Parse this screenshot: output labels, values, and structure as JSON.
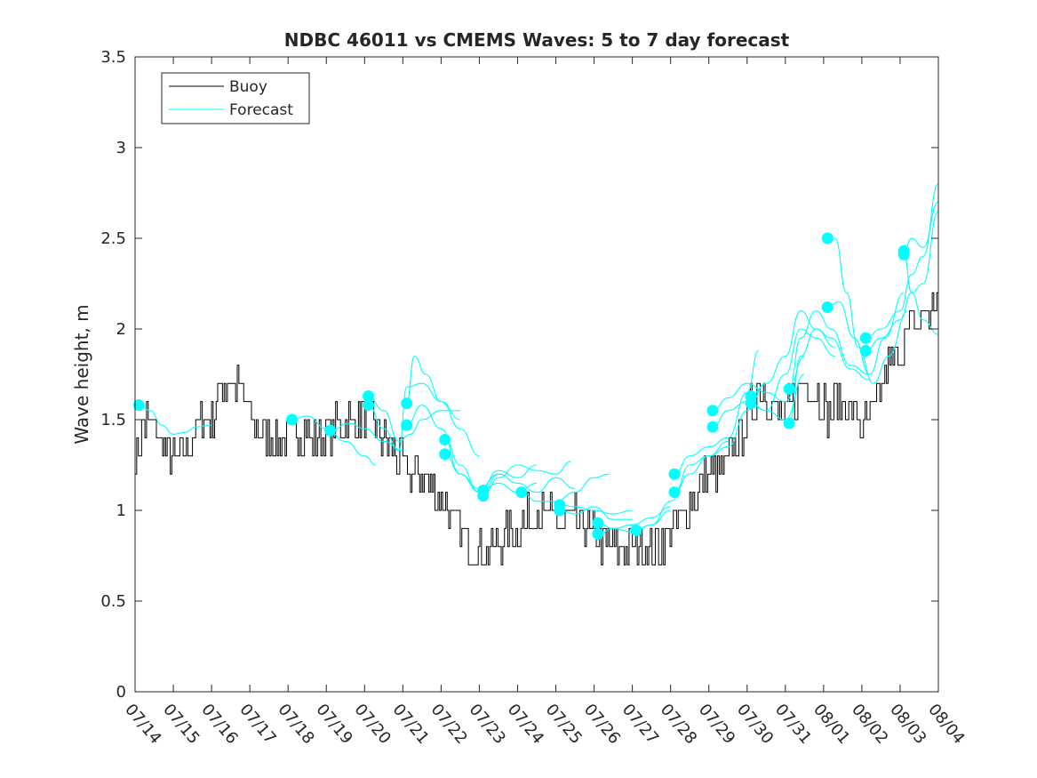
{
  "chart_data": {
    "type": "line",
    "title": "NDBC 46011 vs CMEMS Waves: 5 to 7 day forecast",
    "xlabel": "",
    "ylabel": "Wave height, m",
    "x_ticks": [
      "07/14",
      "07/15",
      "07/16",
      "07/17",
      "07/18",
      "07/19",
      "07/20",
      "07/21",
      "07/22",
      "07/23",
      "07/24",
      "07/25",
      "07/26",
      "07/27",
      "07/28",
      "07/29",
      "07/30",
      "07/31",
      "08/01",
      "08/02",
      "08/03",
      "08/04"
    ],
    "xlim_days": [
      0,
      21
    ],
    "ylim": [
      0,
      3.5
    ],
    "y_ticks": [
      "0",
      "0.5",
      "1",
      "1.5",
      "2",
      "2.5",
      "3",
      "3.5"
    ],
    "grid": false,
    "legend": {
      "placement": "top-left",
      "entries": [
        "Buoy",
        "Forecast"
      ]
    },
    "colors": {
      "buoy": "#000000",
      "forecast": "#00ffff",
      "axes": "#262626"
    },
    "buoy_anchors": [
      [
        0.0,
        1.3
      ],
      [
        0.3,
        1.5
      ],
      [
        0.6,
        1.4
      ],
      [
        1.0,
        1.3
      ],
      [
        1.3,
        1.35
      ],
      [
        1.5,
        1.4
      ],
      [
        1.8,
        1.5
      ],
      [
        2.0,
        1.5
      ],
      [
        2.2,
        1.65
      ],
      [
        2.5,
        1.7
      ],
      [
        2.8,
        1.65
      ],
      [
        3.0,
        1.5
      ],
      [
        3.3,
        1.45
      ],
      [
        3.6,
        1.4
      ],
      [
        4.0,
        1.4
      ],
      [
        4.3,
        1.45
      ],
      [
        4.6,
        1.4
      ],
      [
        4.9,
        1.4
      ],
      [
        5.2,
        1.45
      ],
      [
        5.5,
        1.5
      ],
      [
        5.8,
        1.5
      ],
      [
        6.0,
        1.55
      ],
      [
        6.2,
        1.5
      ],
      [
        6.4,
        1.4
      ],
      [
        6.6,
        1.35
      ],
      [
        6.8,
        1.3
      ],
      [
        7.0,
        1.25
      ],
      [
        7.2,
        1.2
      ],
      [
        7.4,
        1.2
      ],
      [
        7.6,
        1.15
      ],
      [
        7.8,
        1.1
      ],
      [
        8.0,
        1.05
      ],
      [
        8.2,
        1.0
      ],
      [
        8.5,
        0.9
      ],
      [
        8.8,
        0.8
      ],
      [
        9.1,
        0.75
      ],
      [
        9.4,
        0.8
      ],
      [
        9.7,
        0.85
      ],
      [
        10.0,
        0.9
      ],
      [
        10.3,
        0.95
      ],
      [
        10.6,
        1.0
      ],
      [
        10.9,
        0.95
      ],
      [
        11.2,
        0.9
      ],
      [
        11.5,
        0.95
      ],
      [
        11.8,
        0.9
      ],
      [
        12.1,
        0.85
      ],
      [
        12.4,
        0.8
      ],
      [
        12.7,
        0.8
      ],
      [
        13.0,
        0.8
      ],
      [
        13.3,
        0.8
      ],
      [
        13.6,
        0.8
      ],
      [
        13.9,
        0.85
      ],
      [
        14.2,
        0.95
      ],
      [
        14.5,
        1.05
      ],
      [
        14.8,
        1.15
      ],
      [
        15.1,
        1.2
      ],
      [
        15.4,
        1.25
      ],
      [
        15.7,
        1.35
      ],
      [
        16.0,
        1.5
      ],
      [
        16.3,
        1.7
      ],
      [
        16.6,
        1.6
      ],
      [
        16.9,
        1.5
      ],
      [
        17.2,
        1.6
      ],
      [
        17.5,
        1.75
      ],
      [
        17.8,
        1.65
      ],
      [
        18.1,
        1.55
      ],
      [
        18.4,
        1.6
      ],
      [
        18.7,
        1.55
      ],
      [
        19.0,
        1.45
      ],
      [
        19.3,
        1.55
      ],
      [
        19.6,
        1.75
      ],
      [
        19.9,
        1.85
      ],
      [
        20.2,
        2.0
      ],
      [
        20.5,
        2.05
      ],
      [
        20.8,
        2.1
      ],
      [
        21.0,
        2.15
      ]
    ],
    "forecast_runs": [
      {
        "start": [
          0.1,
          1.58
        ],
        "values": [
          [
            0.1,
            1.58
          ],
          [
            0.4,
            1.55
          ],
          [
            0.7,
            1.47
          ],
          [
            1.0,
            1.42
          ],
          [
            1.3,
            1.43
          ],
          [
            1.6,
            1.46
          ],
          [
            2.0,
            1.47
          ]
        ]
      },
      {
        "start": [
          4.1,
          1.5
        ],
        "values": [
          [
            4.1,
            1.5
          ],
          [
            4.5,
            1.52
          ],
          [
            5.0,
            1.45
          ],
          [
            5.5,
            1.38
          ],
          [
            6.0,
            1.3
          ],
          [
            6.3,
            1.25
          ]
        ]
      },
      {
        "start": [
          5.1,
          1.44
        ],
        "values": [
          [
            5.1,
            1.44
          ],
          [
            5.6,
            1.48
          ],
          [
            6.0,
            1.45
          ],
          [
            6.5,
            1.38
          ],
          [
            7.0,
            1.33
          ]
        ]
      },
      {
        "start": [
          6.1,
          1.63
        ],
        "values": [
          [
            6.1,
            1.63
          ],
          [
            6.5,
            1.55
          ],
          [
            6.9,
            1.38
          ],
          [
            7.2,
            1.42
          ],
          [
            7.5,
            1.5
          ],
          [
            8.0,
            1.55
          ],
          [
            8.5,
            1.55
          ]
        ]
      },
      {
        "start": [
          6.1,
          1.58
        ],
        "values": [
          [
            6.1,
            1.58
          ],
          [
            6.5,
            1.45
          ],
          [
            6.9,
            1.33
          ],
          [
            7.1,
            1.68
          ],
          [
            7.5,
            1.7
          ],
          [
            8.0,
            1.6
          ],
          [
            8.5,
            1.5
          ]
        ]
      },
      {
        "start": [
          7.1,
          1.59
        ],
        "values": [
          [
            7.1,
            1.59
          ],
          [
            7.3,
            1.85
          ],
          [
            7.6,
            1.75
          ],
          [
            8.0,
            1.6
          ],
          [
            8.5,
            1.45
          ],
          [
            9.0,
            1.3
          ]
        ]
      },
      {
        "start": [
          7.1,
          1.47
        ],
        "values": [
          [
            7.1,
            1.47
          ],
          [
            7.5,
            1.58
          ],
          [
            8.0,
            1.45
          ],
          [
            8.5,
            1.2
          ],
          [
            9.0,
            1.12
          ],
          [
            9.5,
            1.2
          ]
        ]
      },
      {
        "start": [
          8.1,
          1.39
        ],
        "values": [
          [
            8.1,
            1.39
          ],
          [
            8.5,
            1.25
          ],
          [
            9.0,
            1.1
          ],
          [
            9.5,
            1.22
          ],
          [
            10.0,
            1.18
          ],
          [
            10.5,
            1.25
          ]
        ]
      },
      {
        "start": [
          8.1,
          1.31
        ],
        "values": [
          [
            8.1,
            1.31
          ],
          [
            8.5,
            1.2
          ],
          [
            9.0,
            1.1
          ],
          [
            9.5,
            1.15
          ],
          [
            10.0,
            1.1
          ],
          [
            10.5,
            1.15
          ]
        ]
      },
      {
        "start": [
          9.1,
          1.11
        ],
        "values": [
          [
            9.1,
            1.11
          ],
          [
            9.5,
            1.2
          ],
          [
            10.0,
            1.15
          ],
          [
            10.5,
            1.1
          ],
          [
            11.0,
            1.18
          ],
          [
            11.5,
            1.12
          ]
        ]
      },
      {
        "start": [
          9.1,
          1.08
        ],
        "values": [
          [
            9.1,
            1.08
          ],
          [
            9.5,
            1.18
          ],
          [
            10.0,
            1.25
          ],
          [
            10.5,
            1.22
          ],
          [
            11.0,
            1.2
          ],
          [
            11.4,
            1.27
          ]
        ]
      },
      {
        "start": [
          10.1,
          1.1
        ],
        "values": [
          [
            10.1,
            1.1
          ],
          [
            10.5,
            1.05
          ],
          [
            11.0,
            1.05
          ],
          [
            11.5,
            1.1
          ],
          [
            12.0,
            1.18
          ],
          [
            12.4,
            1.2
          ]
        ]
      },
      {
        "start": [
          11.1,
          1.03
        ],
        "values": [
          [
            11.1,
            1.03
          ],
          [
            11.5,
            1.02
          ],
          [
            12.0,
            1.0
          ],
          [
            12.5,
            0.98
          ],
          [
            13.0,
            1.0
          ]
        ]
      },
      {
        "start": [
          11.1,
          1.0
        ],
        "values": [
          [
            11.1,
            1.0
          ],
          [
            11.5,
            0.98
          ],
          [
            12.0,
            1.02
          ],
          [
            12.5,
            0.95
          ],
          [
            13.0,
            0.95
          ]
        ]
      },
      {
        "start": [
          12.1,
          0.93
        ],
        "values": [
          [
            12.1,
            0.93
          ],
          [
            12.5,
            0.9
          ],
          [
            13.0,
            0.92
          ],
          [
            13.5,
            0.96
          ],
          [
            14.0,
            1.02
          ]
        ]
      },
      {
        "start": [
          12.1,
          0.87
        ],
        "values": [
          [
            12.1,
            0.87
          ],
          [
            12.5,
            0.9
          ],
          [
            13.0,
            0.88
          ],
          [
            13.5,
            0.92
          ],
          [
            14.0,
            1.0
          ]
        ]
      },
      {
        "start": [
          13.1,
          0.89
        ],
        "values": [
          [
            13.1,
            0.89
          ],
          [
            13.5,
            0.92
          ],
          [
            14.0,
            1.05
          ],
          [
            14.5,
            1.2
          ],
          [
            15.0,
            1.3
          ],
          [
            15.5,
            1.38
          ]
        ]
      },
      {
        "start": [
          14.1,
          1.2
        ],
        "values": [
          [
            14.1,
            1.2
          ],
          [
            14.5,
            1.3
          ],
          [
            15.0,
            1.35
          ],
          [
            15.5,
            1.4
          ],
          [
            16.0,
            1.65
          ],
          [
            16.3,
            1.88
          ]
        ]
      },
      {
        "start": [
          14.1,
          1.1
        ],
        "values": [
          [
            14.1,
            1.1
          ],
          [
            14.5,
            1.25
          ],
          [
            15.0,
            1.3
          ],
          [
            15.5,
            1.35
          ],
          [
            16.0,
            1.55
          ],
          [
            16.5,
            1.7
          ]
        ]
      },
      {
        "start": [
          15.1,
          1.55
        ],
        "values": [
          [
            15.1,
            1.55
          ],
          [
            15.5,
            1.62
          ],
          [
            16.0,
            1.7
          ],
          [
            16.5,
            1.65
          ],
          [
            17.0,
            1.6
          ],
          [
            17.5,
            1.85
          ]
        ]
      },
      {
        "start": [
          15.1,
          1.46
        ],
        "values": [
          [
            15.1,
            1.46
          ],
          [
            15.5,
            1.55
          ],
          [
            16.0,
            1.6
          ],
          [
            16.5,
            1.55
          ],
          [
            17.0,
            1.5
          ],
          [
            17.5,
            1.75
          ]
        ]
      },
      {
        "start": [
          16.1,
          1.63
        ],
        "values": [
          [
            16.1,
            1.63
          ],
          [
            16.5,
            1.7
          ],
          [
            17.0,
            1.85
          ],
          [
            17.4,
            2.1
          ],
          [
            17.8,
            2.0
          ],
          [
            18.3,
            1.9
          ]
        ]
      },
      {
        "start": [
          16.1,
          1.59
        ],
        "values": [
          [
            16.1,
            1.59
          ],
          [
            16.5,
            1.55
          ],
          [
            17.0,
            1.75
          ],
          [
            17.4,
            2.0
          ],
          [
            17.8,
            1.95
          ],
          [
            18.3,
            1.85
          ]
        ]
      },
      {
        "start": [
          17.1,
          1.67
        ],
        "values": [
          [
            17.1,
            1.67
          ],
          [
            17.4,
            1.95
          ],
          [
            17.8,
            2.1
          ],
          [
            18.2,
            2.0
          ],
          [
            18.7,
            1.8
          ],
          [
            19.2,
            1.75
          ]
        ]
      },
      {
        "start": [
          17.1,
          1.48
        ],
        "values": [
          [
            17.1,
            1.48
          ],
          [
            17.4,
            1.85
          ],
          [
            17.8,
            2.0
          ],
          [
            18.2,
            1.95
          ],
          [
            18.7,
            1.78
          ],
          [
            19.2,
            1.72
          ]
        ]
      },
      {
        "start": [
          18.1,
          2.5
        ],
        "values": [
          [
            18.1,
            2.5
          ],
          [
            18.3,
            2.5
          ],
          [
            18.6,
            2.2
          ],
          [
            18.9,
            1.9
          ],
          [
            19.3,
            1.7
          ],
          [
            19.7,
            1.85
          ],
          [
            20.2,
            2.1
          ]
        ]
      },
      {
        "start": [
          18.1,
          2.12
        ],
        "values": [
          [
            18.1,
            2.12
          ],
          [
            18.4,
            2.15
          ],
          [
            18.8,
            1.95
          ],
          [
            19.2,
            1.75
          ],
          [
            19.6,
            1.95
          ],
          [
            20.1,
            2.2
          ]
        ]
      },
      {
        "start": [
          19.1,
          1.95
        ],
        "values": [
          [
            19.1,
            1.95
          ],
          [
            19.5,
            2.0
          ],
          [
            20.0,
            2.1
          ],
          [
            20.3,
            2.3
          ],
          [
            20.6,
            2.4
          ],
          [
            21.0,
            2.8
          ]
        ]
      },
      {
        "start": [
          19.1,
          1.88
        ],
        "values": [
          [
            19.1,
            1.88
          ],
          [
            19.5,
            1.95
          ],
          [
            20.0,
            2.05
          ],
          [
            20.3,
            2.2
          ],
          [
            20.6,
            2.25
          ],
          [
            21.0,
            2.65
          ]
        ]
      },
      {
        "start": [
          20.1,
          2.43
        ],
        "values": [
          [
            20.1,
            2.43
          ],
          [
            20.3,
            2.5
          ],
          [
            20.6,
            2.45
          ],
          [
            21.0,
            2.7
          ]
        ]
      },
      {
        "start": [
          20.1,
          2.41
        ],
        "values": [
          [
            20.1,
            2.41
          ],
          [
            20.3,
            2.2
          ],
          [
            20.6,
            2.05
          ],
          [
            21.0,
            1.97
          ]
        ]
      }
    ]
  }
}
